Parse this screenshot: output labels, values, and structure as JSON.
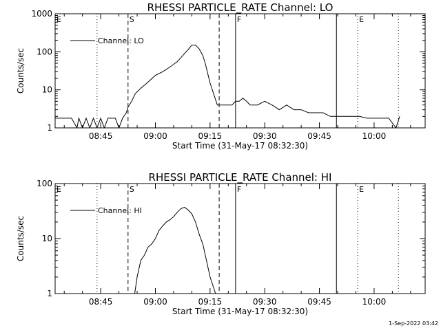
{
  "footer": {
    "timestamp": "1-Sep-2022 03:42"
  },
  "chart_data": [
    {
      "type": "line",
      "title": "RHESSI PARTICLE_RATE Channel: LO",
      "xlabel": "Start Time (31-May-17 08:32:30)",
      "ylabel": "Counts/sec",
      "yscale": "log",
      "ylim": [
        1,
        1000
      ],
      "xlim": [
        "08:32:30",
        "10:14:00"
      ],
      "xticks": [
        "08:45",
        "09:00",
        "09:15",
        "09:30",
        "09:45",
        "10:00"
      ],
      "yticks": [
        "1",
        "10",
        "100",
        "1000"
      ],
      "legend": {
        "position": "top-left",
        "entries": [
          "Channel: LO"
        ]
      },
      "markers": [
        {
          "label": "E",
          "time": "08:32:30",
          "style": "dotted"
        },
        {
          "label": "",
          "time": "08:44:00",
          "style": "dotted"
        },
        {
          "label": "S",
          "time": "08:52:30",
          "style": "dashed"
        },
        {
          "label": "",
          "time": "09:17:30",
          "style": "dashed"
        },
        {
          "label": "F",
          "time": "09:22:00",
          "style": "solid"
        },
        {
          "label": "",
          "time": "09:49:40",
          "style": "solid"
        },
        {
          "label": "E",
          "time": "09:55:30",
          "style": "dotted"
        },
        {
          "label": "",
          "time": "10:06:40",
          "style": "dotted"
        }
      ],
      "series": [
        {
          "name": "Channel: LO",
          "x": [
            "08:32:30",
            "08:37:00",
            "08:38:30",
            "08:39:00",
            "08:40:00",
            "08:41:00",
            "08:42:00",
            "08:43:00",
            "08:44:00",
            "08:45:00",
            "08:46:00",
            "08:47:00",
            "08:48:00",
            "08:49:00",
            "08:50:00",
            "08:51:00",
            "08:52:00",
            "08:52:30",
            "08:53:30",
            "08:54:30",
            "08:56:00",
            "08:58:00",
            "09:00:00",
            "09:02:00",
            "09:04:00",
            "09:06:00",
            "09:07:00",
            "09:08:00",
            "09:09:00",
            "09:10:00",
            "09:11:00",
            "09:12:00",
            "09:13:00",
            "09:13:40",
            "09:15:00",
            "09:17:00",
            "09:19:00",
            "09:20:00",
            "09:21:00",
            "09:22:00",
            "09:23:00",
            "09:24:00",
            "09:25:00",
            "09:26:00",
            "09:27:00",
            "09:28:00",
            "09:30:00",
            "09:32:00",
            "09:34:00",
            "09:36:00",
            "09:38:00",
            "09:40:00",
            "09:42:00",
            "09:44:00",
            "09:46:00",
            "09:48:00",
            "09:50:00",
            "09:52:00",
            "09:54:00",
            "09:56:00",
            "09:58:00",
            "10:00:00",
            "10:02:00",
            "10:04:00",
            "10:06:00",
            "10:07:00"
          ],
          "y": [
            1.8,
            1.8,
            1,
            1.8,
            1,
            1.8,
            1,
            1.8,
            1,
            1.8,
            1,
            1.8,
            1.8,
            1.8,
            1,
            1.8,
            2.5,
            3.5,
            5,
            8,
            11,
            16,
            24,
            30,
            40,
            55,
            70,
            90,
            115,
            150,
            150,
            120,
            80,
            50,
            15,
            4,
            4,
            4,
            4,
            5,
            5,
            6,
            5,
            4,
            4,
            4,
            5,
            4,
            3,
            4,
            3,
            3,
            2.5,
            2.5,
            2.5,
            2,
            2,
            2,
            2,
            2,
            1.8,
            1.8,
            1.8,
            1.8,
            1,
            2
          ]
        }
      ]
    },
    {
      "type": "line",
      "title": "RHESSI PARTICLE_RATE Channel: HI",
      "xlabel": "Start Time (31-May-17 08:32:30)",
      "ylabel": "Counts/sec",
      "yscale": "log",
      "ylim": [
        1,
        100
      ],
      "xlim": [
        "08:32:30",
        "10:14:00"
      ],
      "xticks": [
        "08:45",
        "09:00",
        "09:15",
        "09:30",
        "09:45",
        "10:00"
      ],
      "yticks": [
        "1",
        "10",
        "100"
      ],
      "legend": {
        "position": "top-left",
        "entries": [
          "Channel: HI"
        ]
      },
      "markers": [
        {
          "label": "E",
          "time": "08:32:30",
          "style": "dotted"
        },
        {
          "label": "",
          "time": "08:44:00",
          "style": "dotted"
        },
        {
          "label": "S",
          "time": "08:52:30",
          "style": "dashed"
        },
        {
          "label": "",
          "time": "09:17:30",
          "style": "dashed"
        },
        {
          "label": "F",
          "time": "09:22:00",
          "style": "solid"
        },
        {
          "label": "",
          "time": "09:49:40",
          "style": "solid"
        },
        {
          "label": "E",
          "time": "09:55:30",
          "style": "dotted"
        },
        {
          "label": "",
          "time": "10:06:40",
          "style": "dotted"
        }
      ],
      "series": [
        {
          "name": "Channel: HI",
          "x": [
            "08:54:20",
            "08:55:00",
            "08:56:00",
            "08:57:00",
            "08:58:00",
            "08:59:00",
            "09:00:00",
            "09:01:00",
            "09:02:00",
            "09:03:00",
            "09:04:00",
            "09:05:00",
            "09:06:00",
            "09:07:00",
            "09:08:00",
            "09:09:00",
            "09:10:00",
            "09:11:00",
            "09:12:00",
            "09:13:00",
            "09:14:00",
            "09:15:00",
            "09:16:30"
          ],
          "y": [
            1,
            2,
            4,
            5,
            7,
            8,
            10,
            14,
            17,
            20,
            22,
            25,
            30,
            35,
            37,
            33,
            28,
            20,
            12,
            8,
            4,
            2,
            1
          ]
        }
      ]
    }
  ]
}
